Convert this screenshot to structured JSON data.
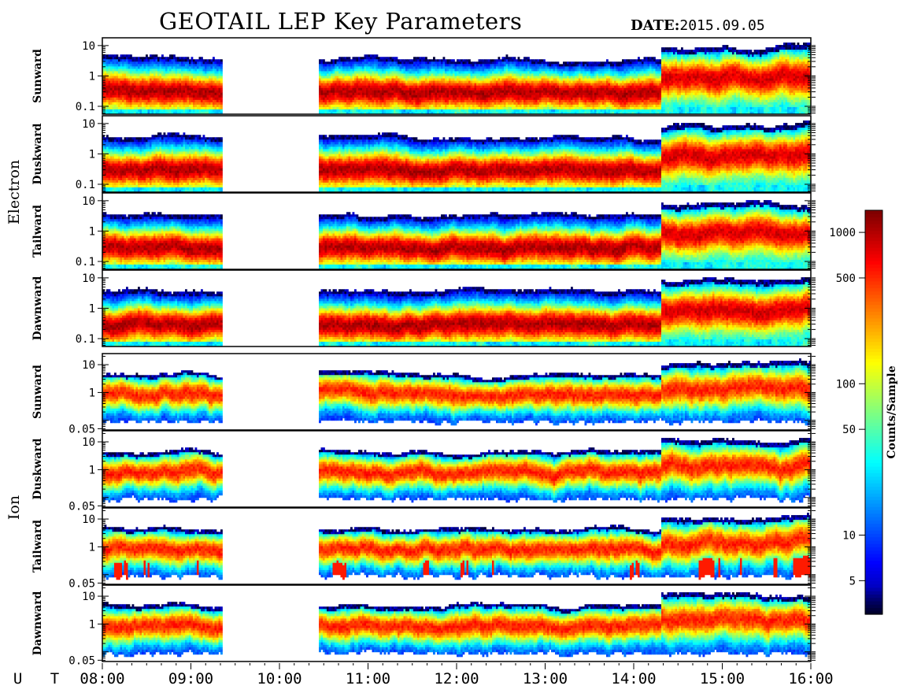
{
  "title": "GEOTAIL LEP Key Parameters",
  "date_label": "DATE:",
  "date_value": "2015.09.05",
  "chart_data": {
    "type": "heatmap",
    "title": "GEOTAIL LEP Key Parameters",
    "x_axis_label": "U T",
    "x_ticks": [
      "08:00",
      "09:00",
      "10:00",
      "11:00",
      "12:00",
      "13:00",
      "14:00",
      "15:00",
      "16:00"
    ],
    "x_range_hours": [
      8,
      16
    ],
    "data_gaps_hours": [
      [
        9.35,
        10.45
      ]
    ],
    "groups": [
      {
        "label": "Electron",
        "y_scale": "log",
        "y_ticks": [
          "10",
          "1",
          "0.1"
        ],
        "y_tick_values": [
          10,
          1,
          0.1
        ],
        "y_range": [
          0.055,
          18
        ],
        "panels": [
          "Sunward",
          "Duskward",
          "Tailward",
          "Dawnward"
        ]
      },
      {
        "label": "Ion",
        "y_scale": "log",
        "y_ticks": [
          "10",
          "1",
          "0.05"
        ],
        "y_tick_values": [
          10,
          1,
          0.05
        ],
        "y_range": [
          0.045,
          25
        ],
        "panels": [
          "Sunward",
          "Duskward",
          "Tailward",
          "Dawnward"
        ]
      }
    ],
    "colorbar": {
      "label": "Counts/Sample",
      "scale": "log",
      "range": [
        3,
        1400
      ],
      "ticks": [
        "1000",
        "500",
        "100",
        "50",
        "10",
        "5"
      ],
      "tick_values": [
        1000,
        500,
        100,
        50,
        10,
        5
      ],
      "colormap": "jet"
    },
    "background_color": "#ffffff",
    "gap_color": "#ffffff"
  }
}
